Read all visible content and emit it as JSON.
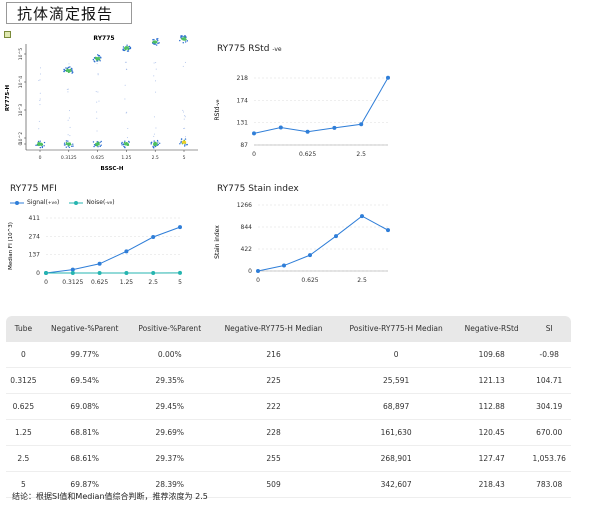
{
  "page_title": "抗体滴定报告",
  "dotplot": {
    "title": "RY775",
    "xlabel": "BSSC-H",
    "ylabel": "RY775-H",
    "x_ticks": [
      "0",
      "0.3125",
      "0.625",
      "1.25",
      "2.5",
      "5"
    ],
    "y_ticks": [
      "10^5",
      "10^4",
      "10^3",
      "10^2",
      "0"
    ],
    "populations": [
      {
        "tube": "0",
        "negative_median": 216,
        "positive_median": 0
      },
      {
        "tube": "0.3125",
        "negative_median": 225,
        "positive_median": 25591
      },
      {
        "tube": "0.625",
        "negative_median": 222,
        "positive_median": 68897
      },
      {
        "tube": "1.25",
        "negative_median": 228,
        "positive_median": 161630
      },
      {
        "tube": "2.5",
        "negative_median": 255,
        "positive_median": 268901
      },
      {
        "tube": "5",
        "negative_median": 509,
        "positive_median": 342607
      }
    ]
  },
  "chart_data": [
    {
      "id": "rstd",
      "type": "line",
      "title": "RY775 RStd",
      "title_sub": "-ve",
      "ylabel": "RStd",
      "ylabel_sub": "-ve",
      "x": [
        0,
        0.3125,
        0.625,
        1.25,
        2.5,
        5
      ],
      "x_tick_labels": [
        "0",
        "0.625",
        "2.5"
      ],
      "y_ticks": [
        87,
        131,
        174,
        218
      ],
      "series": [
        {
          "values": [
            109.68,
            121.13,
            112.88,
            120.45,
            127.47,
            218.43
          ],
          "color": "#2f7ed8"
        }
      ]
    },
    {
      "id": "mfi",
      "type": "line",
      "title": "RY775 MFI",
      "ylabel": "Median FI (10^3)",
      "x": [
        "0",
        "0.3125",
        "0.625",
        "1.25",
        "2.5",
        "5"
      ],
      "y_ticks": [
        0,
        137,
        274,
        411
      ],
      "legend": "top-left",
      "series": [
        {
          "name": "Signal",
          "name_sub": "+ve",
          "values": [
            0,
            25.591,
            68.897,
            161.63,
            268.901,
            342.607
          ],
          "color": "#2f7ed8"
        },
        {
          "name": "Noise",
          "name_sub": "-ve",
          "values": [
            0.216,
            0.225,
            0.222,
            0.228,
            0.255,
            0.509
          ],
          "color": "#26b5b0"
        }
      ]
    },
    {
      "id": "si",
      "type": "line",
      "title": "RY775 Stain index",
      "ylabel": "Stain index",
      "x": [
        0,
        0.3125,
        0.625,
        1.25,
        2.5,
        5
      ],
      "x_tick_labels": [
        "0",
        "0.625",
        "2.5"
      ],
      "y_ticks": [
        0,
        422,
        844,
        1266
      ],
      "series": [
        {
          "values": [
            -0.98,
            104.71,
            304.19,
            670.0,
            1053.76,
            783.08
          ],
          "color": "#2f7ed8"
        }
      ]
    }
  ],
  "table": {
    "headers": [
      "Tube",
      "Negative-%Parent",
      "Positive-%Parent",
      "Negative-RY775-H Median",
      "Positive-RY775-H Median",
      "Negative-RStd",
      "SI"
    ],
    "rows": [
      [
        "0",
        "99.77%",
        "0.00%",
        "216",
        "0",
        "109.68",
        "-0.98"
      ],
      [
        "0.3125",
        "69.54%",
        "29.35%",
        "225",
        "25,591",
        "121.13",
        "104.71"
      ],
      [
        "0.625",
        "69.08%",
        "29.45%",
        "222",
        "68,897",
        "112.88",
        "304.19"
      ],
      [
        "1.25",
        "68.81%",
        "29.69%",
        "228",
        "161,630",
        "120.45",
        "670.00"
      ],
      [
        "2.5",
        "68.61%",
        "29.37%",
        "255",
        "268,901",
        "127.47",
        "1,053.76"
      ],
      [
        "5",
        "69.87%",
        "28.39%",
        "509",
        "342,607",
        "218.43",
        "783.08"
      ]
    ]
  },
  "conclusion": "结论：根据SI值和Median值综合判断，推荐浓度为  2.5"
}
